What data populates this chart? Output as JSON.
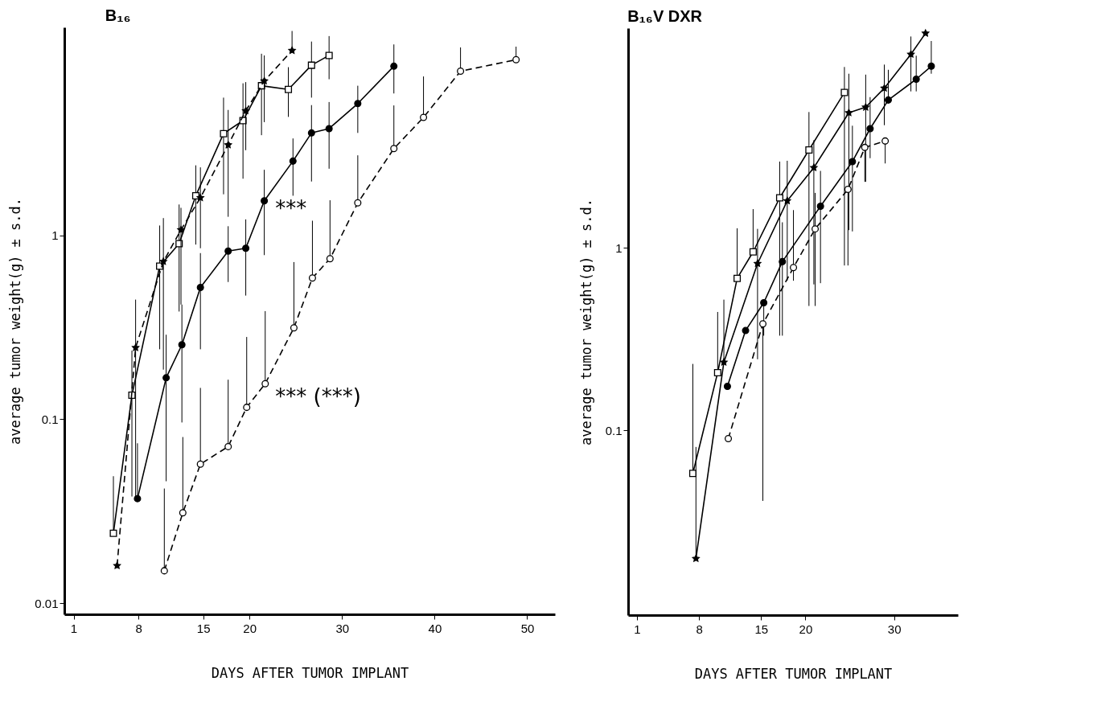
{
  "chart_data": [
    {
      "type": "line",
      "title": "B₁₆",
      "xlabel": "DAYS AFTER TUMOR IMPLANT",
      "ylabel": "average tumor weight(g) ± s.d.",
      "xlim": [
        0,
        53
      ],
      "xticks": [
        1,
        8,
        15,
        20,
        30,
        40,
        50
      ],
      "ylim": [
        0.0087,
        13.5
      ],
      "yticks": [
        0.01,
        0.1,
        1
      ],
      "log": true,
      "grid": false,
      "annotations": [
        "***",
        "*** (***)"
      ],
      "series": [
        {
          "color": "#000000",
          "marker": "square",
          "line_style": "solid",
          "x": [
            5.3,
            7.3,
            10.3,
            12.4,
            14.2,
            17.2,
            19.3,
            21.3,
            24.2,
            26.7,
            28.6
          ],
          "values": [
            0.024,
            0.135,
            0.68,
            0.9,
            1.64,
            3.57,
            4.2,
            6.5,
            6.2,
            8.4,
            9.5
          ],
          "errors": [
            [
              0.024,
              0.049
            ],
            [
              0.038,
              0.236
            ],
            [
              0.24,
              1.13
            ],
            [
              0.385,
              1.47
            ],
            [
              0.89,
              2.4
            ],
            [
              1.67,
              5.6
            ],
            [
              2.03,
              6.7
            ],
            [
              3.5,
              9.7
            ],
            [
              4.4,
              8.2
            ],
            [
              5.6,
              11.3
            ],
            [
              7.05,
              12.1
            ]
          ]
        },
        {
          "color": "#000000",
          "marker": "star",
          "line_style": "dashed",
          "x": [
            5.7,
            7.7,
            10.7,
            12.6,
            14.7,
            17.7,
            19.6,
            21.6,
            24.6
          ],
          "values": [
            0.016,
            0.245,
            0.72,
            1.07,
            1.6,
            3.1,
            4.75,
            6.9,
            10.1
          ],
          "errors": [
            null,
            [
              0.037,
              0.447
            ],
            [
              0.186,
              1.24
            ],
            [
              0.42,
              1.41
            ],
            [
              0.85,
              2.34
            ],
            [
              1.26,
              4.8
            ],
            [
              2.9,
              6.8
            ],
            [
              4.12,
              9.5
            ],
            [
              10.1,
              12.9
            ]
          ]
        },
        {
          "color": "#000000",
          "marker": "circle",
          "line_style": "solid",
          "x": [
            7.9,
            11.0,
            12.7,
            14.7,
            17.7,
            19.6,
            21.6,
            24.7,
            26.7,
            28.6,
            31.7,
            35.6
          ],
          "values": [
            0.037,
            0.168,
            0.254,
            0.52,
            0.82,
            0.85,
            1.54,
            2.53,
            3.6,
            3.8,
            5.2,
            8.3
          ],
          "errors": [
            [
              0.037,
              0.074
            ],
            [
              0.046,
              0.288
            ],
            [
              0.096,
              0.42
            ],
            [
              0.24,
              0.8
            ],
            [
              0.557,
              1.12
            ],
            [
              0.47,
              1.22
            ],
            [
              0.78,
              2.27
            ],
            [
              1.64,
              3.36
            ],
            [
              1.96,
              5.1
            ],
            [
              2.3,
              5.3
            ],
            [
              3.6,
              6.5
            ],
            [
              5.9,
              10.9
            ]
          ]
        },
        {
          "color": "#000000",
          "marker": "circle",
          "line_style": "dashed",
          "x": [
            10.8,
            12.8,
            14.7,
            17.7,
            19.7,
            21.7,
            24.8,
            26.8,
            28.7,
            31.7,
            35.6,
            38.8,
            42.8,
            48.8
          ],
          "values": [
            0.015,
            0.031,
            0.057,
            0.071,
            0.116,
            0.156,
            0.314,
            0.586,
            0.746,
            1.5,
            2.96,
            4.37,
            7.8,
            9.0
          ],
          "errors": [
            [
              0.015,
              0.042
            ],
            [
              0.031,
              0.08
            ],
            [
              0.057,
              0.148
            ],
            [
              0.071,
              0.164
            ],
            [
              0.116,
              0.28
            ],
            [
              0.156,
              0.387
            ],
            [
              0.314,
              0.715
            ],
            [
              0.586,
              1.2
            ],
            [
              0.746,
              1.55
            ],
            [
              1.5,
              2.72
            ],
            [
              2.96,
              5.08
            ],
            [
              4.37,
              7.3
            ],
            [
              7.8,
              10.5
            ],
            [
              9.0,
              10.6
            ]
          ]
        }
      ]
    },
    {
      "type": "line",
      "title": "B₁₆V DXR",
      "xlabel": "DAYS AFTER TUMOR IMPLANT",
      "ylabel": "average tumor weight(g) ± s.d.",
      "xlim": [
        0,
        37.2
      ],
      "xticks": [
        1,
        8,
        15,
        20,
        30
      ],
      "ylim": [
        0.0097,
        16
      ],
      "yticks": [
        0.1,
        1
      ],
      "log": true,
      "grid": false,
      "series": [
        {
          "color": "#000000",
          "marker": "square",
          "line_style": "solid",
          "x": [
            7.3,
            10.1,
            12.3,
            14.1,
            17.1,
            20.4,
            24.4
          ],
          "values": [
            0.058,
            0.207,
            0.68,
            0.95,
            1.88,
            3.44,
            7.1
          ],
          "errors": [
            [
              0.058,
              0.231
            ],
            [
              0.207,
              0.445
            ],
            [
              0.68,
              1.28
            ],
            [
              0.95,
              1.63
            ],
            [
              0.33,
              2.97
            ],
            [
              0.48,
              5.55
            ],
            [
              0.8,
              9.8
            ]
          ]
        },
        {
          "color": "#000000",
          "marker": "star",
          "line_style": "solid",
          "x": [
            7.65,
            10.8,
            14.6,
            17.95,
            20.95,
            24.9,
            26.8,
            28.9,
            31.9,
            33.55
          ],
          "values": [
            0.0198,
            0.236,
            0.82,
            1.81,
            2.75,
            5.5,
            5.9,
            7.5,
            11.5,
            15
          ],
          "errors": [
            [
              0.0198,
              0.081
            ],
            [
              0.236,
              0.52
            ],
            [
              0.245,
              1.27
            ],
            [
              0.66,
              3.0
            ],
            [
              0.63,
              3.89
            ],
            [
              1.25,
              9.0
            ],
            [
              2.3,
              8.9
            ],
            [
              4.7,
              10.1
            ],
            [
              7.2,
              14.4
            ],
            null
          ]
        },
        {
          "color": "#000000",
          "marker": "circle",
          "line_style": "solid",
          "x": [
            11.2,
            13.25,
            15.3,
            17.4,
            21.7,
            25.3,
            27.3,
            29.35,
            32.5,
            34.2
          ],
          "values": [
            0.174,
            0.352,
            0.5,
            0.84,
            1.69,
            2.97,
            4.5,
            6.46,
            8.4,
            9.9
          ],
          "errors": [
            null,
            null,
            [
              0.33,
              0.5
            ],
            [
              0.33,
              1.38
            ],
            [
              0.64,
              2.64
            ],
            [
              1.23,
              4.67
            ],
            [
              3.1,
              6.7
            ],
            [
              6.46,
              9.46
            ],
            [
              7.2,
              11.3
            ],
            [
              9.0,
              13.6
            ]
          ]
        },
        {
          "color": "#000000",
          "marker": "circle",
          "line_style": "dashed",
          "x": [
            11.3,
            15.2,
            18.65,
            21.1,
            24.8,
            26.7,
            29.0
          ],
          "values": [
            0.09,
            0.383,
            0.78,
            1.27,
            2.09,
            3.55,
            3.85
          ],
          "errors": [
            null,
            [
              0.041,
              0.383
            ],
            [
              0.66,
              1.61
            ],
            [
              0.48,
              2.0
            ],
            [
              0.8,
              2.09
            ],
            [
              2.3,
              3.55
            ],
            [
              2.9,
              3.85
            ]
          ]
        }
      ]
    }
  ]
}
